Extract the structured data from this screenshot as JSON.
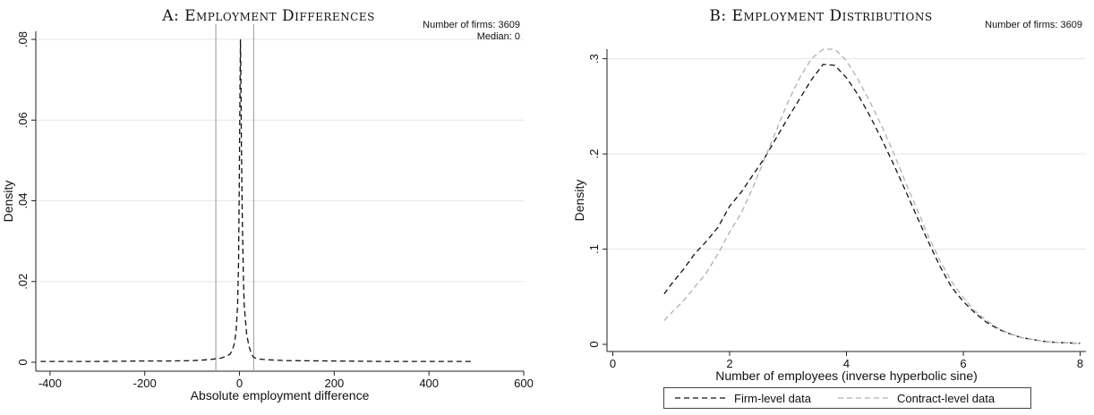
{
  "chart_data": [
    {
      "type": "line",
      "title": "A: Employment Differences",
      "xlabel": "Absolute employment difference",
      "ylabel": "Density",
      "xlim": [
        -430,
        600
      ],
      "ylim": [
        0,
        0.082
      ],
      "xticks": [
        -400,
        -200,
        0,
        200,
        400,
        600
      ],
      "xtick_labels": [
        "-400",
        "-200",
        "0",
        "200",
        "400",
        "600"
      ],
      "yticks": [
        0,
        0.02,
        0.04,
        0.06,
        0.08
      ],
      "ytick_labels": [
        "0",
        ".02",
        ".04",
        ".06",
        ".08"
      ],
      "grid": true,
      "annotations": [
        "Number of firms: 3609",
        "Median: 0"
      ],
      "reference_lines_x": [
        -50,
        30
      ],
      "series": [
        {
          "style": "dashed",
          "color": "#111111",
          "x": [
            -420,
            -300,
            -200,
            -150,
            -100,
            -80,
            -60,
            -40,
            -30,
            -20,
            -15,
            -10,
            -7,
            -4,
            -2,
            0,
            1,
            2,
            3,
            4,
            6,
            8,
            10,
            15,
            20,
            25,
            30,
            40,
            60,
            100,
            200,
            300,
            400,
            495
          ],
          "y": [
            0.0002,
            0.0002,
            0.0003,
            0.0003,
            0.0004,
            0.0005,
            0.0007,
            0.001,
            0.0014,
            0.002,
            0.003,
            0.005,
            0.008,
            0.014,
            0.025,
            0.05,
            0.068,
            0.08,
            0.07,
            0.055,
            0.035,
            0.022,
            0.014,
            0.007,
            0.004,
            0.002,
            0.0012,
            0.0008,
            0.0006,
            0.0004,
            0.0003,
            0.0002,
            0.0002,
            0.0002
          ]
        }
      ]
    },
    {
      "type": "line",
      "title": "B: Employment Distributions",
      "xlabel": "Number of employees (inverse hyperbolic sine)",
      "ylabel": "Density",
      "xlim": [
        -0.1,
        8.1
      ],
      "ylim": [
        0,
        0.31
      ],
      "xticks": [
        0,
        2,
        4,
        6,
        8
      ],
      "xtick_labels": [
        "0",
        "2",
        "4",
        "6",
        "8"
      ],
      "yticks": [
        0,
        0.1,
        0.2,
        0.3
      ],
      "ytick_labels": [
        "0",
        ".1",
        ".2",
        ".3"
      ],
      "grid": true,
      "annotations": [
        "Number of firms: 3609"
      ],
      "legend_position": "bottom",
      "series": [
        {
          "name": "Firm-level data",
          "style": "dashed",
          "color": "#111111",
          "x": [
            0.88,
            1.0,
            1.2,
            1.4,
            1.6,
            1.8,
            2.0,
            2.2,
            2.4,
            2.6,
            2.8,
            3.0,
            3.2,
            3.4,
            3.6,
            3.8,
            4.0,
            4.2,
            4.4,
            4.6,
            4.8,
            5.0,
            5.2,
            5.4,
            5.6,
            5.8,
            6.0,
            6.2,
            6.4,
            6.6,
            6.8,
            7.0,
            7.2,
            7.4,
            7.6,
            7.8,
            8.0
          ],
          "y": [
            0.053,
            0.063,
            0.078,
            0.095,
            0.108,
            0.123,
            0.145,
            0.16,
            0.178,
            0.196,
            0.217,
            0.238,
            0.258,
            0.278,
            0.294,
            0.293,
            0.28,
            0.262,
            0.24,
            0.216,
            0.19,
            0.163,
            0.135,
            0.108,
            0.082,
            0.06,
            0.045,
            0.033,
            0.023,
            0.016,
            0.011,
            0.007,
            0.005,
            0.003,
            0.002,
            0.0015,
            0.001
          ]
        },
        {
          "name": "Contract-level data",
          "style": "dashed",
          "color": "#b0b0b0",
          "x": [
            0.88,
            1.0,
            1.2,
            1.4,
            1.6,
            1.8,
            2.0,
            2.2,
            2.4,
            2.6,
            2.8,
            3.0,
            3.2,
            3.4,
            3.6,
            3.8,
            4.0,
            4.2,
            4.4,
            4.6,
            4.8,
            5.0,
            5.2,
            5.4,
            5.6,
            5.8,
            6.0,
            6.2,
            6.4,
            6.6,
            6.8,
            7.0,
            7.2,
            7.4,
            7.6,
            7.8,
            8.0
          ],
          "y": [
            0.025,
            0.033,
            0.045,
            0.06,
            0.075,
            0.095,
            0.118,
            0.138,
            0.165,
            0.195,
            0.225,
            0.255,
            0.28,
            0.3,
            0.31,
            0.31,
            0.298,
            0.278,
            0.255,
            0.23,
            0.202,
            0.172,
            0.143,
            0.114,
            0.088,
            0.066,
            0.049,
            0.035,
            0.025,
            0.017,
            0.011,
            0.007,
            0.005,
            0.003,
            0.002,
            0.0015,
            0.001
          ]
        }
      ]
    }
  ]
}
